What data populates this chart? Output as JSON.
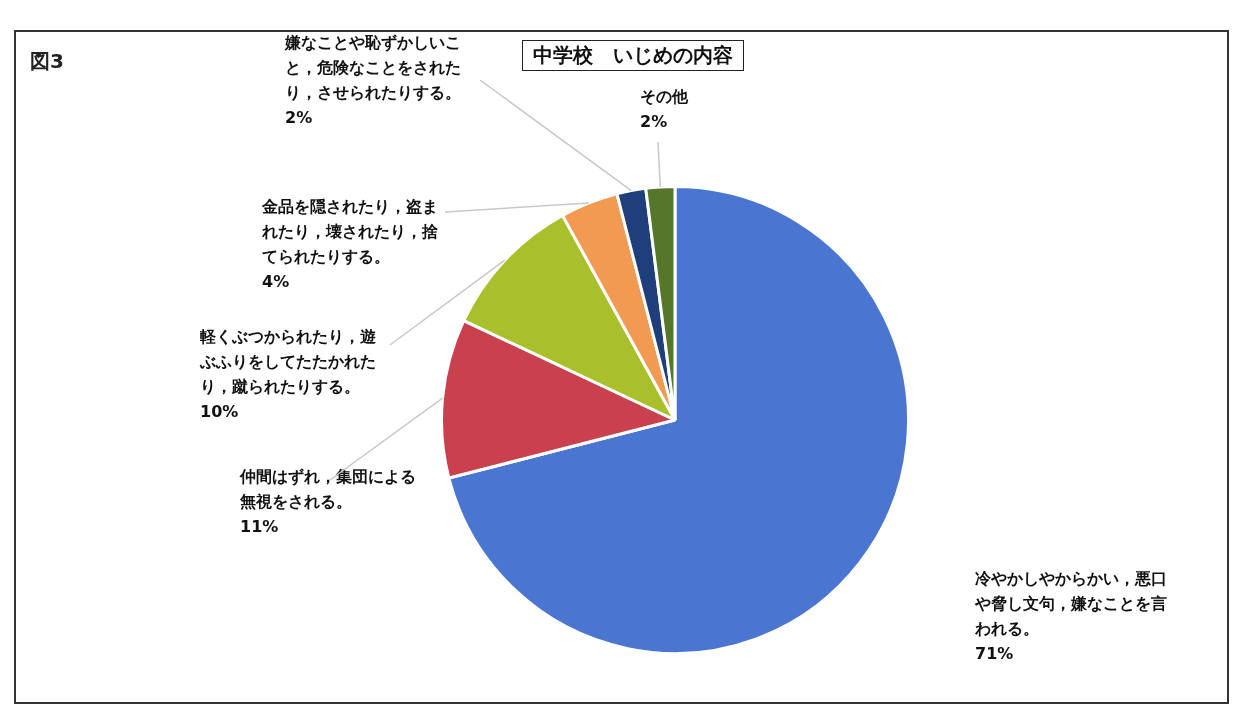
{
  "chart_data": {
    "type": "pie",
    "title": "中学校　いじめの内容",
    "annotations": [
      "図3"
    ],
    "categories": [
      "冷やかしやからかい，悪口や脅し文句，嫌なことを言われる。",
      "仲間はずれ，集団による無視をされる。",
      "軽くぶつかられたり，遊ぶふりをしてたたかれたり，蹴られたりする。",
      "金品を隠されたり，盗まれたり，壊されたり，捨てられたりする。",
      "嫌なことや恥ずかしいこと，危険なことをされたり，させられたりする。",
      "その他"
    ],
    "values": [
      71,
      11,
      10,
      4,
      2,
      2
    ],
    "value_labels": [
      "71%",
      "11%",
      "10%",
      "4%",
      "2%",
      "2%"
    ],
    "colors": [
      "#4a76d2",
      "#c9404e",
      "#a9bf2c",
      "#f29a52",
      "#1f3f7c",
      "#56762a"
    ],
    "legend": false
  }
}
